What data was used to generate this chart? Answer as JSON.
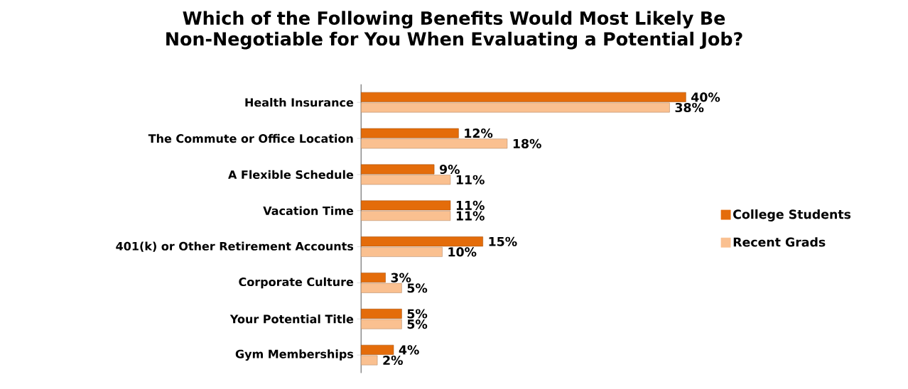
{
  "chart_data": {
    "type": "bar",
    "orientation": "horizontal",
    "title": "Which of the Following Benefits Would Most Likely Be Non-Negotiable for You When Evaluating a Potential Job?",
    "categories": [
      "Health Insurance",
      "The Commute or Office Location",
      "A Flexible Schedule",
      "Vacation Time",
      "401(k) or Other Retirement Accounts",
      "Corporate Culture",
      "Your Potential Title",
      "Gym Memberships"
    ],
    "series": [
      {
        "name": "College Students",
        "color": "#e46c0a",
        "values": [
          40,
          12,
          9,
          11,
          15,
          3,
          5,
          4
        ],
        "value_labels": [
          "40%",
          "12%",
          "9%",
          "11%",
          "15%",
          "3%",
          "5%",
          "4%"
        ]
      },
      {
        "name": "Recent Grads",
        "color": "#fac090",
        "values": [
          38,
          18,
          11,
          11,
          10,
          5,
          5,
          2
        ],
        "value_labels": [
          "38%",
          "18%",
          "11%",
          "11%",
          "10%",
          "5%",
          "5%",
          "2%"
        ]
      }
    ],
    "legend": "right"
  }
}
